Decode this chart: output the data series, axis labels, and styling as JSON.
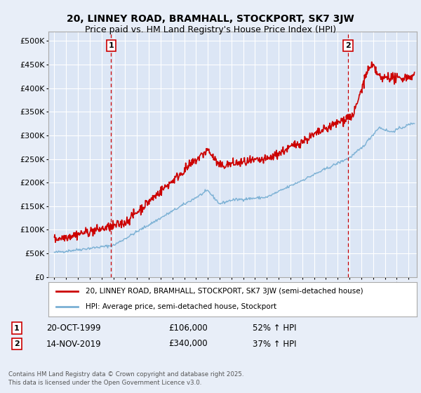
{
  "title1": "20, LINNEY ROAD, BRAMHALL, STOCKPORT, SK7 3JW",
  "title2": "Price paid vs. HM Land Registry's House Price Index (HPI)",
  "ytick_values": [
    0,
    50000,
    100000,
    150000,
    200000,
    250000,
    300000,
    350000,
    400000,
    450000,
    500000
  ],
  "ylim": [
    0,
    520000
  ],
  "xlim_start": 1994.5,
  "xlim_end": 2025.7,
  "background_color": "#e8eef8",
  "plot_bg_color": "#dce6f5",
  "grid_color": "#ffffff",
  "red_line_color": "#cc0000",
  "blue_line_color": "#7ab0d4",
  "marker1_x": 1999.8,
  "marker1_y": 106000,
  "marker2_x": 2019.87,
  "marker2_y": 340000,
  "legend_label1": "20, LINNEY ROAD, BRAMHALL, STOCKPORT, SK7 3JW (semi-detached house)",
  "legend_label2": "HPI: Average price, semi-detached house, Stockport",
  "annotation1_date": "20-OCT-1999",
  "annotation1_price": "£106,000",
  "annotation1_hpi": "52% ↑ HPI",
  "annotation2_date": "14-NOV-2019",
  "annotation2_price": "£340,000",
  "annotation2_hpi": "37% ↑ HPI",
  "footer": "Contains HM Land Registry data © Crown copyright and database right 2025.\nThis data is licensed under the Open Government Licence v3.0.",
  "title_fontsize": 10,
  "subtitle_fontsize": 9
}
